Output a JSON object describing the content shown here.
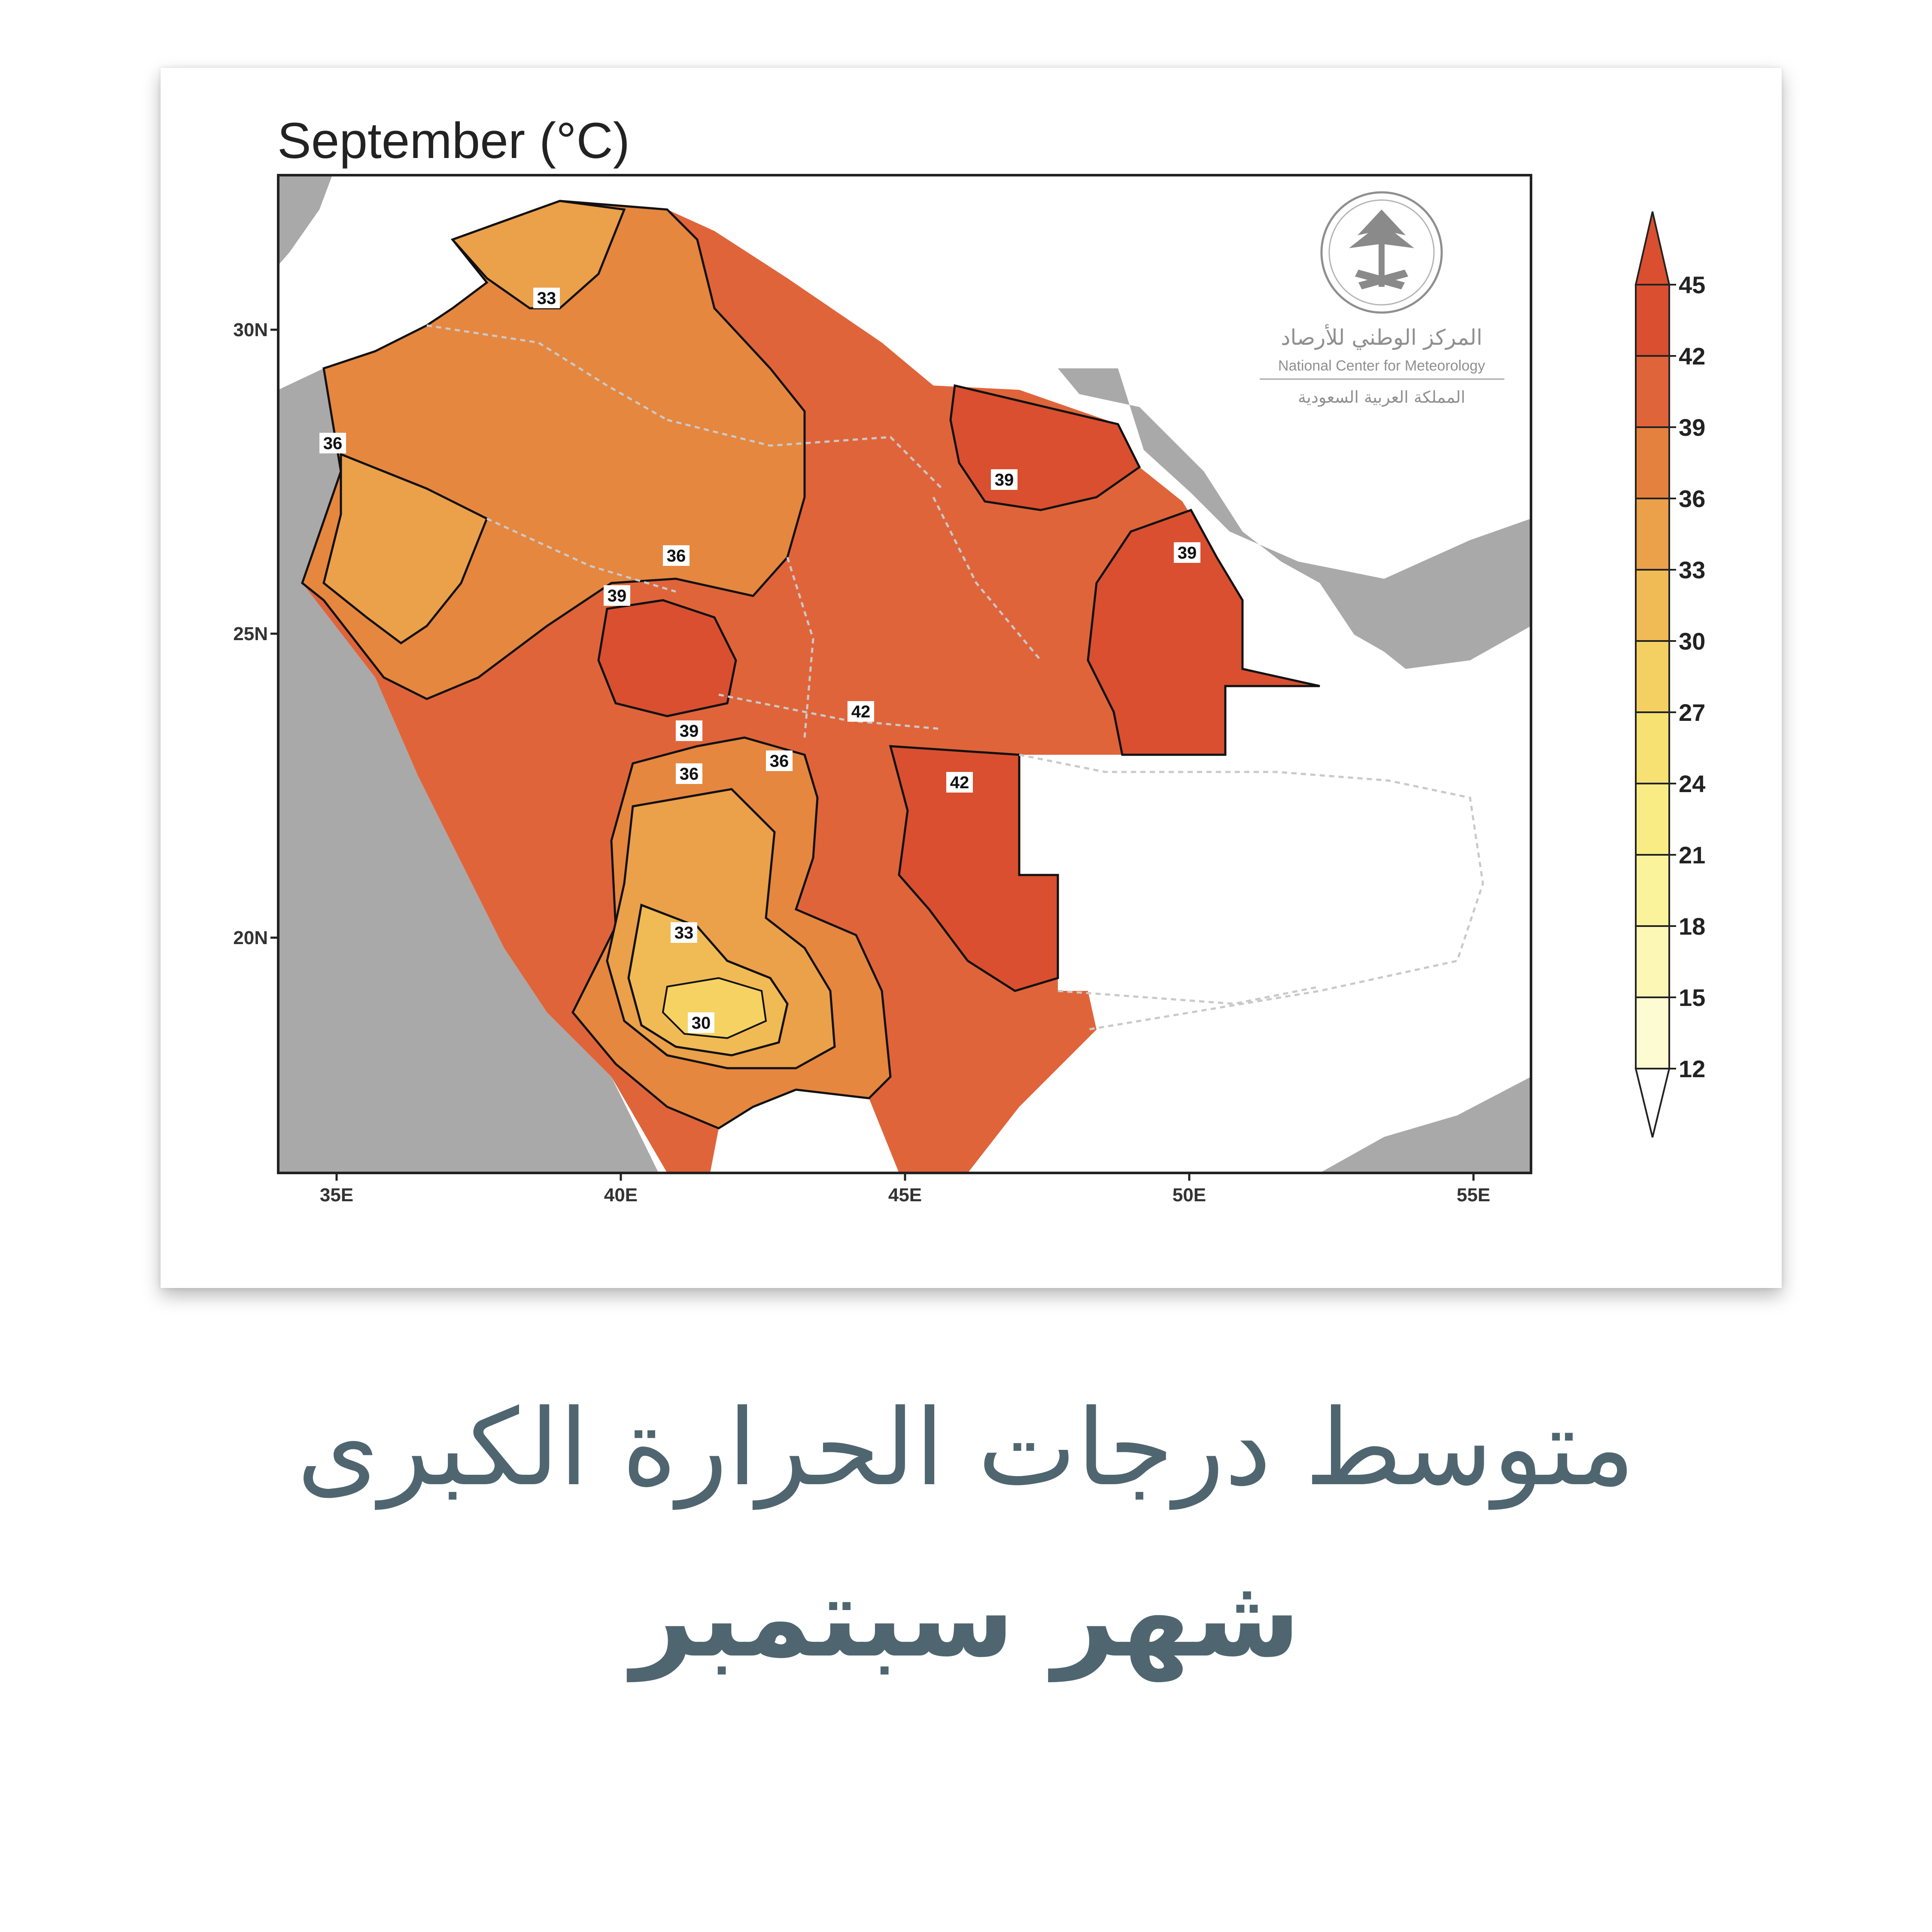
{
  "map": {
    "title": "September (°C)",
    "lat_labels": [
      "30N",
      "25N",
      "20N"
    ],
    "lon_labels": [
      "35E",
      "40E",
      "45E",
      "50E",
      "55E"
    ],
    "contour_labels": [
      "33",
      "36",
      "36",
      "39",
      "39",
      "39",
      "42",
      "39",
      "36",
      "36",
      "42",
      "33",
      "30"
    ],
    "colorbar": {
      "ticks": [
        "45",
        "42",
        "39",
        "36",
        "33",
        "30",
        "27",
        "24",
        "21",
        "18",
        "15",
        "12"
      ],
      "colors": [
        "#d94f30",
        "#e0643a",
        "#e5813f",
        "#eba04a",
        "#f0bb55",
        "#f4d062",
        "#f7e172",
        "#f9ec85",
        "#fbf39b",
        "#fcf7b5",
        "#fdfbd2"
      ]
    },
    "colors": {
      "land_base": "#e0643a",
      "warm_42": "#d94f30",
      "cool_36": "#e5873f",
      "cool_33": "#eba04a",
      "cool_30": "#f0bb55",
      "cool_27": "#f5d262",
      "neighbor_land": "#a9a9a9"
    },
    "logo": {
      "line1": "المركز الوطني للأرصاد",
      "line2": "National Center for Meteorology",
      "line3": "المملكة العربية السعودية"
    }
  },
  "caption": {
    "line1": "متوسط درجات الحرارة الكبرى",
    "line2": "شهر سبتمبر"
  }
}
